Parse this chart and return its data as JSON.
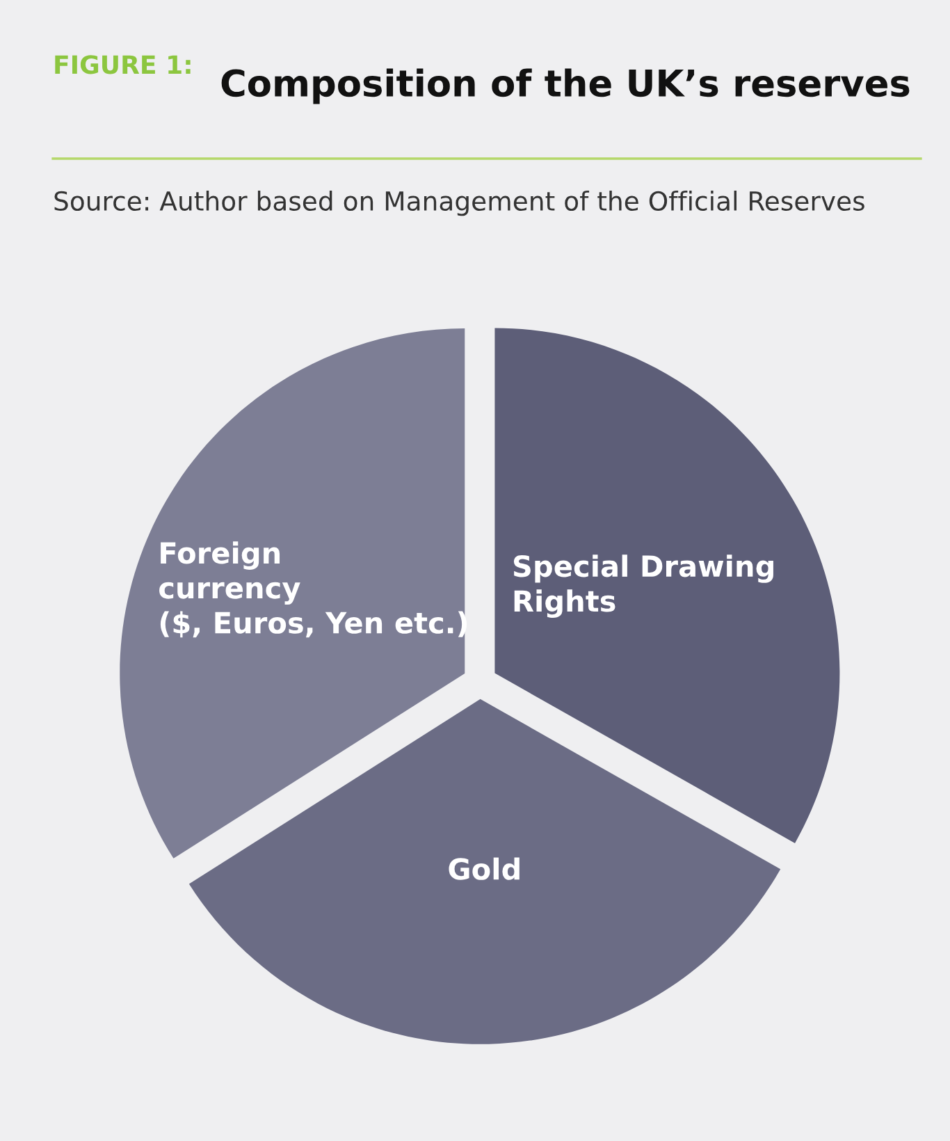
{
  "chart_data": {
    "type": "pie",
    "title": "Composition of the UK’s reserves",
    "annotations": [
      "FIGURE 1:",
      "Source: Author based on Management of the Official Reserves"
    ],
    "categories": [
      "Special Drawing\nRights",
      "Gold",
      "Foreign\ncurrency\n($, Euros, Yen etc.)"
    ],
    "values": [
      33.2,
      32.8,
      34.0
    ],
    "colors": [
      "#5d5e78",
      "#6b6c85",
      "#7d7e95"
    ],
    "legend": false
  }
}
